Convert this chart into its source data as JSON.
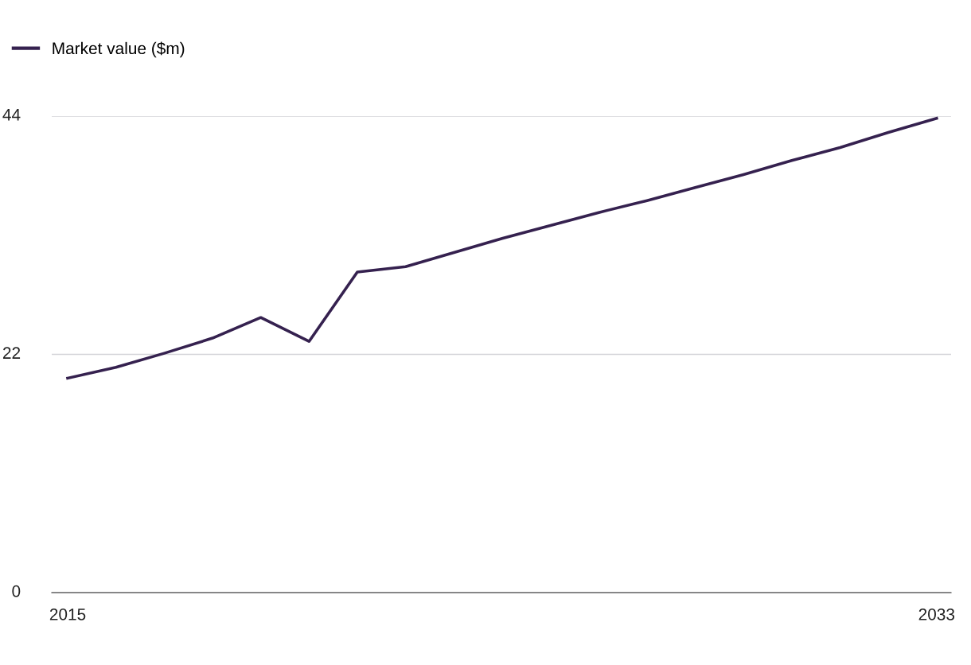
{
  "chart_data": {
    "type": "line",
    "x": [
      2015,
      2016,
      2017,
      2018,
      2019,
      2020,
      2021,
      2022,
      2023,
      2024,
      2025,
      2026,
      2027,
      2028,
      2029,
      2030,
      2031,
      2032,
      2033
    ],
    "series": [
      {
        "name": "Market value ($m)",
        "color": "#35214f",
        "values": [
          19.8,
          20.8,
          22.1,
          23.5,
          25.4,
          23.2,
          29.6,
          30.1,
          31.4,
          32.7,
          33.9,
          35.1,
          36.2,
          37.4,
          38.6,
          39.9,
          41.1,
          42.5,
          43.8
        ]
      }
    ],
    "xlim": [
      2014.67,
      2033.3
    ],
    "xticks": [
      2015,
      2033
    ],
    "ylim": [
      0,
      44
    ],
    "yticks": [
      0,
      22,
      44
    ],
    "grid": "y",
    "legend": "top left",
    "marker": "none",
    "line_style": "solid"
  }
}
